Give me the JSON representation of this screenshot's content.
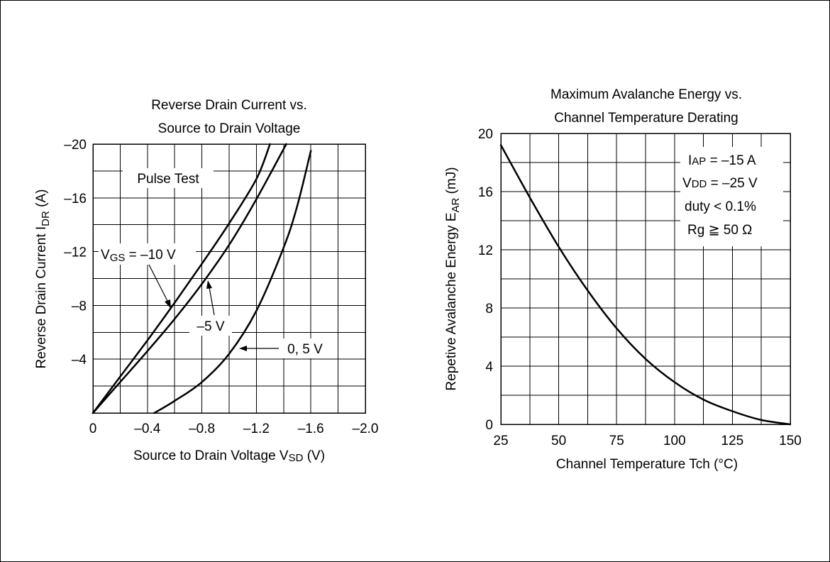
{
  "chart_data": [
    {
      "type": "line",
      "title": "Reverse Drain Current vs.\nSource to Drain Voltage",
      "title_lines": [
        "Reverse Drain Current vs.",
        "Source to Drain Voltage"
      ],
      "xlabel": "Source to Drain Voltage V_SD (V)",
      "xlabel_parts": {
        "pre": "Source to Drain Voltage V",
        "sub": "SD",
        "post": " (V)"
      },
      "ylabel": "Reverse Drain Current I_DR (A)",
      "ylabel_parts": {
        "pre": "Reverse Drain Current I",
        "sub": "DR",
        "post": " (A)"
      },
      "xlim": [
        0,
        -2.0
      ],
      "ylim": [
        0,
        -20
      ],
      "x_ticks": [
        0,
        -0.4,
        -0.8,
        -1.2,
        -1.6,
        -2.0
      ],
      "x_tick_labels": [
        "0",
        "–0.4",
        "–0.8",
        "–1.2",
        "–1.6",
        "–2.0"
      ],
      "y_ticks": [
        -4,
        -8,
        -12,
        -16,
        -20
      ],
      "y_tick_labels": [
        "–4",
        "–8",
        "–12",
        "–16",
        "–20"
      ],
      "grid": true,
      "annotation": "Pulse Test",
      "series": [
        {
          "name": "V_GS = –10 V",
          "x": [
            0,
            -0.2,
            -0.4,
            -0.6,
            -0.8,
            -1.0,
            -1.2,
            -1.3
          ],
          "y": [
            0,
            -2.7,
            -5.4,
            -8.2,
            -11.1,
            -14.1,
            -17.4,
            -20
          ]
        },
        {
          "name": "–5 V",
          "x": [
            0,
            -0.2,
            -0.4,
            -0.6,
            -0.8,
            -1.0,
            -1.2,
            -1.42
          ],
          "y": [
            0,
            -2.3,
            -4.6,
            -7.0,
            -9.6,
            -12.5,
            -15.9,
            -20
          ]
        },
        {
          "name": "0, 5 V",
          "x": [
            -0.45,
            -0.6,
            -0.8,
            -1.0,
            -1.2,
            -1.4,
            -1.5,
            -1.6
          ],
          "y": [
            0,
            -0.9,
            -2.3,
            -4.4,
            -7.6,
            -12.3,
            -15.4,
            -19.5
          ]
        }
      ],
      "labels": {
        "vgs10": {
          "pre": "V",
          "sub": "GS",
          "post": " = –10 V"
        },
        "vgs5": "–5 V",
        "vgs0": "0, 5 V"
      }
    },
    {
      "type": "line",
      "title": "Maximum Avalanche Energy vs.\nChannel Temperature Derating",
      "title_lines": [
        "Maximum Avalanche Energy vs.",
        "Channel Temperature Derating"
      ],
      "xlabel": "Channel Temperature Tch (°C)",
      "ylabel": "Repetive Avalanche Energy E_AR (mJ)",
      "ylabel_parts": {
        "pre": "Repetive Avalanche Energy E",
        "sub": "AR",
        "post": " (mJ)"
      },
      "xlim": [
        25,
        150
      ],
      "ylim": [
        0,
        20
      ],
      "x_ticks": [
        25,
        50,
        75,
        100,
        125,
        150
      ],
      "x_tick_labels": [
        "25",
        "50",
        "75",
        "100",
        "125",
        "150"
      ],
      "y_ticks": [
        0,
        4,
        8,
        12,
        16,
        20
      ],
      "y_tick_labels": [
        "0",
        "4",
        "8",
        "12",
        "16",
        "20"
      ],
      "grid": true,
      "conditions": [
        {
          "pre": "I",
          "sub": "AP",
          "post": " = –15 A"
        },
        {
          "pre": "V",
          "sub": "DD",
          "post": " = –25 V"
        },
        {
          "pre": "duty < 0.1%",
          "sub": "",
          "post": ""
        },
        {
          "pre": "Rg ≧ 50 Ω",
          "sub": "",
          "post": ""
        }
      ],
      "series": [
        {
          "x": [
            25,
            37.5,
            50,
            62.5,
            75,
            87.5,
            100,
            112.5,
            125,
            137.5,
            150
          ],
          "y": [
            19.2,
            15.6,
            12.2,
            9.2,
            6.6,
            4.5,
            2.9,
            1.7,
            0.9,
            0.3,
            0
          ]
        }
      ]
    }
  ]
}
